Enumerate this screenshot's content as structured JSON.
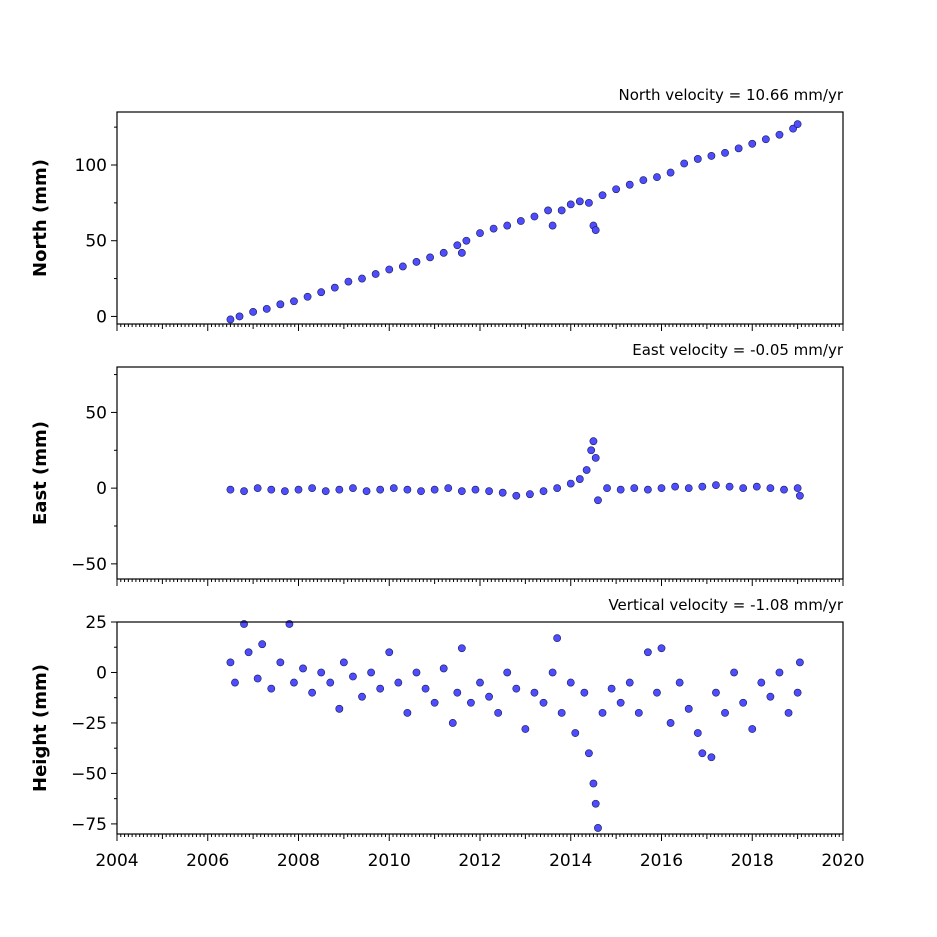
{
  "chart_data": [
    {
      "type": "scatter",
      "title": "North velocity = 10.66 mm/yr",
      "ylabel": "North (mm)",
      "xlim": [
        2004,
        2020
      ],
      "ylim": [
        -5,
        135
      ],
      "yticks": [
        0,
        50,
        100
      ],
      "ytick_labels": [
        "0",
        "50",
        "100"
      ],
      "xticks": [
        2004,
        2006,
        2008,
        2010,
        2012,
        2014,
        2016,
        2018,
        2020
      ],
      "xtick_labels": [],
      "marker_color": "#4d4dff",
      "points": [
        [
          2006.5,
          -2
        ],
        [
          2006.7,
          0
        ],
        [
          2007.0,
          3
        ],
        [
          2007.3,
          5
        ],
        [
          2007.6,
          8
        ],
        [
          2007.9,
          10
        ],
        [
          2008.2,
          13
        ],
        [
          2008.5,
          16
        ],
        [
          2008.8,
          19
        ],
        [
          2009.1,
          23
        ],
        [
          2009.4,
          25
        ],
        [
          2009.7,
          28
        ],
        [
          2010.0,
          31
        ],
        [
          2010.3,
          33
        ],
        [
          2010.6,
          36
        ],
        [
          2010.9,
          39
        ],
        [
          2011.2,
          42
        ],
        [
          2011.5,
          47
        ],
        [
          2011.6,
          42
        ],
        [
          2011.7,
          50
        ],
        [
          2012.0,
          55
        ],
        [
          2012.3,
          58
        ],
        [
          2012.6,
          60
        ],
        [
          2012.9,
          63
        ],
        [
          2013.2,
          66
        ],
        [
          2013.5,
          70
        ],
        [
          2013.6,
          60
        ],
        [
          2013.8,
          70
        ],
        [
          2014.0,
          74
        ],
        [
          2014.2,
          76
        ],
        [
          2014.4,
          75
        ],
        [
          2014.5,
          60
        ],
        [
          2014.55,
          57
        ],
        [
          2014.7,
          80
        ],
        [
          2015.0,
          84
        ],
        [
          2015.3,
          87
        ],
        [
          2015.6,
          90
        ],
        [
          2015.9,
          92
        ],
        [
          2016.2,
          95
        ],
        [
          2016.5,
          101
        ],
        [
          2016.8,
          104
        ],
        [
          2017.1,
          106
        ],
        [
          2017.4,
          108
        ],
        [
          2017.7,
          111
        ],
        [
          2018.0,
          114
        ],
        [
          2018.3,
          117
        ],
        [
          2018.6,
          120
        ],
        [
          2018.9,
          124
        ],
        [
          2019.0,
          127
        ]
      ]
    },
    {
      "type": "scatter",
      "title": "East velocity = -0.05 mm/yr",
      "ylabel": "East (mm)",
      "xlim": [
        2004,
        2020
      ],
      "ylim": [
        -60,
        80
      ],
      "yticks": [
        -50,
        0,
        50
      ],
      "ytick_labels": [
        "−50",
        "0",
        "50"
      ],
      "xticks": [
        2004,
        2006,
        2008,
        2010,
        2012,
        2014,
        2016,
        2018,
        2020
      ],
      "xtick_labels": [],
      "marker_color": "#4d4dff",
      "points": [
        [
          2006.5,
          -1
        ],
        [
          2006.8,
          -2
        ],
        [
          2007.1,
          0
        ],
        [
          2007.4,
          -1
        ],
        [
          2007.7,
          -2
        ],
        [
          2008.0,
          -1
        ],
        [
          2008.3,
          0
        ],
        [
          2008.6,
          -2
        ],
        [
          2008.9,
          -1
        ],
        [
          2009.2,
          0
        ],
        [
          2009.5,
          -2
        ],
        [
          2009.8,
          -1
        ],
        [
          2010.1,
          0
        ],
        [
          2010.4,
          -1
        ],
        [
          2010.7,
          -2
        ],
        [
          2011.0,
          -1
        ],
        [
          2011.3,
          0
        ],
        [
          2011.6,
          -2
        ],
        [
          2011.9,
          -1
        ],
        [
          2012.2,
          -2
        ],
        [
          2012.5,
          -3
        ],
        [
          2012.8,
          -5
        ],
        [
          2013.1,
          -4
        ],
        [
          2013.4,
          -2
        ],
        [
          2013.7,
          0
        ],
        [
          2014.0,
          3
        ],
        [
          2014.2,
          6
        ],
        [
          2014.35,
          12
        ],
        [
          2014.45,
          25
        ],
        [
          2014.5,
          31
        ],
        [
          2014.55,
          20
        ],
        [
          2014.6,
          -8
        ],
        [
          2014.8,
          0
        ],
        [
          2015.1,
          -1
        ],
        [
          2015.4,
          0
        ],
        [
          2015.7,
          -1
        ],
        [
          2016.0,
          0
        ],
        [
          2016.3,
          1
        ],
        [
          2016.6,
          0
        ],
        [
          2016.9,
          1
        ],
        [
          2017.2,
          2
        ],
        [
          2017.5,
          1
        ],
        [
          2017.8,
          0
        ],
        [
          2018.1,
          1
        ],
        [
          2018.4,
          0
        ],
        [
          2018.7,
          -1
        ],
        [
          2019.0,
          0
        ],
        [
          2019.05,
          -5
        ]
      ]
    },
    {
      "type": "scatter",
      "title": "Vertical velocity = -1.08 mm/yr",
      "ylabel": "Height (mm)",
      "xlim": [
        2004,
        2020
      ],
      "ylim": [
        -80,
        25
      ],
      "yticks": [
        -75,
        -50,
        -25,
        0,
        25
      ],
      "ytick_labels": [
        "−75",
        "−50",
        "−25",
        "0",
        "25"
      ],
      "xticks": [
        2004,
        2006,
        2008,
        2010,
        2012,
        2014,
        2016,
        2018,
        2020
      ],
      "xtick_labels": [
        "2004",
        "2006",
        "2008",
        "2010",
        "2012",
        "2014",
        "2016",
        "2018",
        "2020"
      ],
      "marker_color": "#4d4dff",
      "points": [
        [
          2006.5,
          5
        ],
        [
          2006.6,
          -5
        ],
        [
          2006.8,
          24
        ],
        [
          2006.9,
          10
        ],
        [
          2007.1,
          -3
        ],
        [
          2007.2,
          14
        ],
        [
          2007.4,
          -8
        ],
        [
          2007.6,
          5
        ],
        [
          2007.8,
          24
        ],
        [
          2007.9,
          -5
        ],
        [
          2008.1,
          2
        ],
        [
          2008.3,
          -10
        ],
        [
          2008.5,
          0
        ],
        [
          2008.7,
          -5
        ],
        [
          2008.9,
          -18
        ],
        [
          2009.0,
          5
        ],
        [
          2009.2,
          -2
        ],
        [
          2009.4,
          -12
        ],
        [
          2009.6,
          0
        ],
        [
          2009.8,
          -8
        ],
        [
          2010.0,
          10
        ],
        [
          2010.2,
          -5
        ],
        [
          2010.4,
          -20
        ],
        [
          2010.6,
          0
        ],
        [
          2010.8,
          -8
        ],
        [
          2011.0,
          -15
        ],
        [
          2011.2,
          2
        ],
        [
          2011.4,
          -25
        ],
        [
          2011.5,
          -10
        ],
        [
          2011.6,
          12
        ],
        [
          2011.8,
          -15
        ],
        [
          2012.0,
          -5
        ],
        [
          2012.2,
          -12
        ],
        [
          2012.4,
          -20
        ],
        [
          2012.6,
          0
        ],
        [
          2012.8,
          -8
        ],
        [
          2013.0,
          -28
        ],
        [
          2013.2,
          -10
        ],
        [
          2013.4,
          -15
        ],
        [
          2013.6,
          0
        ],
        [
          2013.7,
          17
        ],
        [
          2013.8,
          -20
        ],
        [
          2014.0,
          -5
        ],
        [
          2014.1,
          -30
        ],
        [
          2014.3,
          -10
        ],
        [
          2014.4,
          -40
        ],
        [
          2014.5,
          -55
        ],
        [
          2014.55,
          -65
        ],
        [
          2014.6,
          -77
        ],
        [
          2014.7,
          -20
        ],
        [
          2014.9,
          -8
        ],
        [
          2015.1,
          -15
        ],
        [
          2015.3,
          -5
        ],
        [
          2015.5,
          -20
        ],
        [
          2015.7,
          10
        ],
        [
          2015.9,
          -10
        ],
        [
          2016.0,
          12
        ],
        [
          2016.2,
          -25
        ],
        [
          2016.4,
          -5
        ],
        [
          2016.6,
          -18
        ],
        [
          2016.8,
          -30
        ],
        [
          2016.9,
          -40
        ],
        [
          2017.1,
          -42
        ],
        [
          2017.2,
          -10
        ],
        [
          2017.4,
          -20
        ],
        [
          2017.6,
          0
        ],
        [
          2017.8,
          -15
        ],
        [
          2018.0,
          -28
        ],
        [
          2018.2,
          -5
        ],
        [
          2018.4,
          -12
        ],
        [
          2018.6,
          0
        ],
        [
          2018.8,
          -20
        ],
        [
          2019.0,
          -10
        ],
        [
          2019.05,
          5
        ]
      ]
    }
  ]
}
